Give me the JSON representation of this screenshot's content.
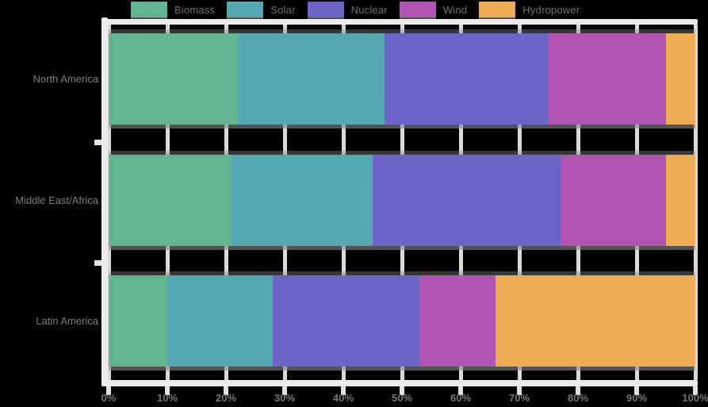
{
  "colors": {
    "background": "#010101",
    "frame": "#ebebeb",
    "text_gray": "#7d7d7d",
    "legend_text": "#6f6f6f"
  },
  "legend": {
    "items": [
      {
        "label": "Biomass",
        "color": "#62B58F"
      },
      {
        "label": "Solar",
        "color": "#53A8B3"
      },
      {
        "label": "Nuclear",
        "color": "#6B65C8"
      },
      {
        "label": "Wind",
        "color": "#B254B2"
      },
      {
        "label": "Hydropower",
        "color": "#EDAC53"
      }
    ]
  },
  "chart_data": {
    "type": "bar",
    "orientation": "horizontal",
    "stacked": true,
    "title": "",
    "xlabel": "",
    "ylabel": "",
    "xlim": [
      0,
      100
    ],
    "grid": true,
    "legend_position": "top",
    "x_tick_labels": [
      "0%",
      "10%",
      "20%",
      "30%",
      "40%",
      "50%",
      "60%",
      "70%",
      "80%",
      "90%",
      "100%"
    ],
    "categories": [
      "North America",
      "Middle East/Africa",
      "Latin America"
    ],
    "series": [
      {
        "name": "Biomass",
        "color": "#62B58F",
        "values": [
          22,
          21,
          10
        ]
      },
      {
        "name": "Solar",
        "color": "#53A8B3",
        "values": [
          25,
          24,
          18
        ]
      },
      {
        "name": "Nuclear",
        "color": "#6B65C8",
        "values": [
          28,
          32,
          25
        ]
      },
      {
        "name": "Wind",
        "color": "#B254B2",
        "values": [
          20,
          18,
          13
        ]
      },
      {
        "name": "Hydropower",
        "color": "#EDAC53",
        "values": [
          5,
          5,
          34
        ]
      }
    ]
  }
}
